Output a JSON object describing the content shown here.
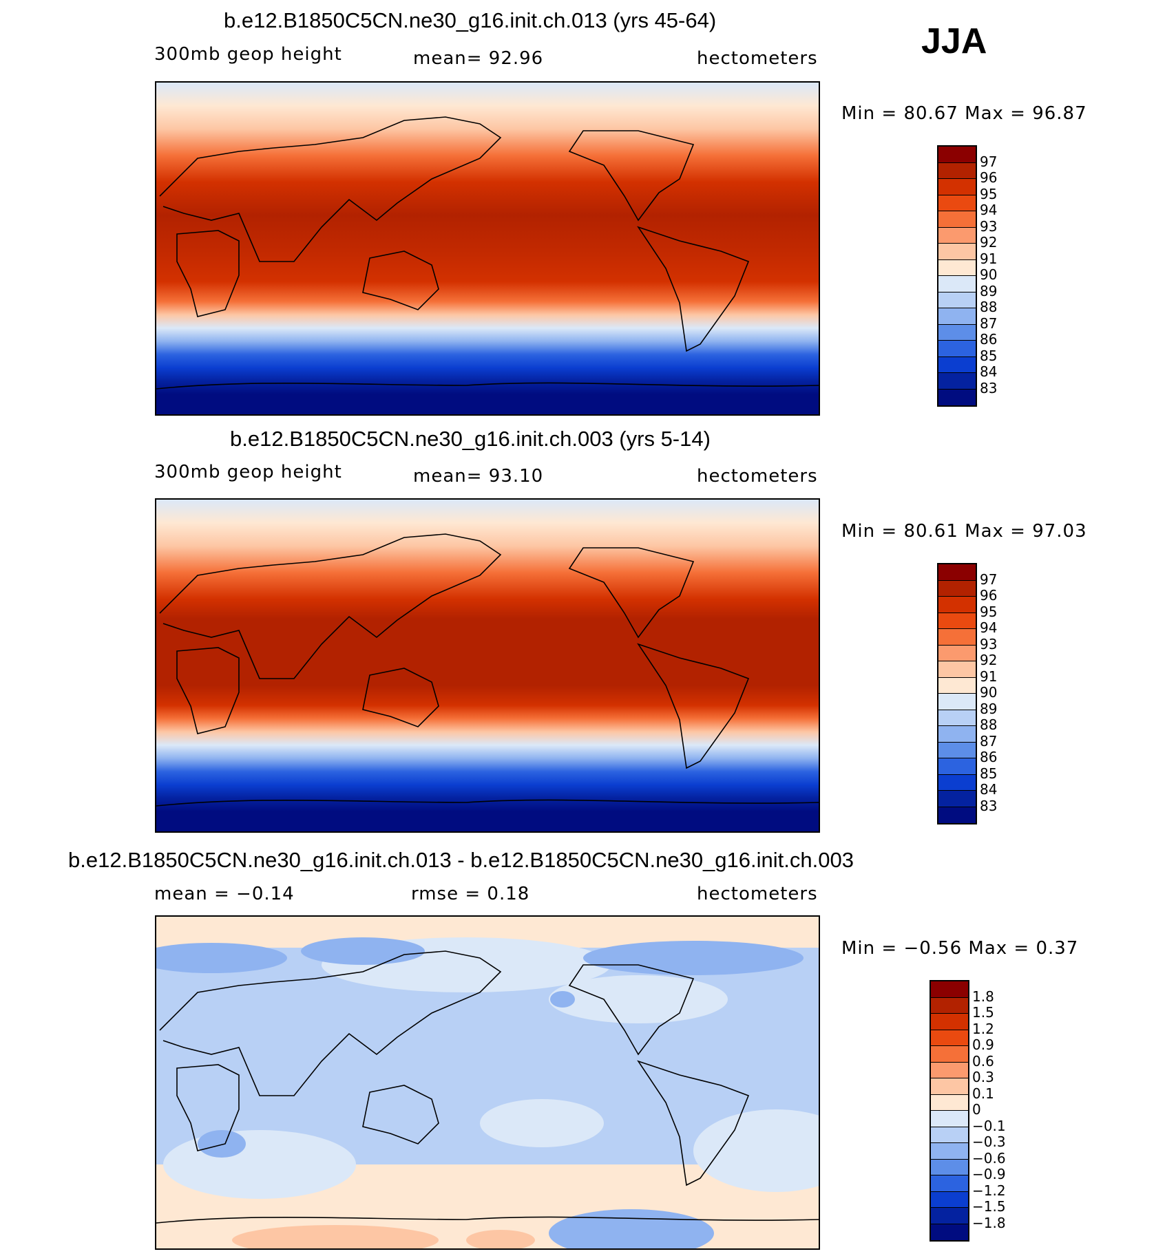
{
  "season": "JJA",
  "panels": [
    {
      "title": "b.e12.B1850C5CN.ne30_g16.init.ch.013 (yrs 45-64)",
      "left_label": "300mb  geop  height",
      "center_label": "mean=   92.96",
      "units": "hectometers",
      "minmax": "Min  =   80.67  Max  =   96.87",
      "colorbar_labels": [
        "97",
        "96",
        "95",
        "94",
        "93",
        "92",
        "91",
        "90",
        "89",
        "88",
        "87",
        "86",
        "85",
        "84",
        "83"
      ],
      "colorbar_colors": [
        "#8b0000",
        "#b22200",
        "#d33100",
        "#ea4a10",
        "#f57038",
        "#fb9a6e",
        "#fdc6a4",
        "#fee8d3",
        "#dbe8f8",
        "#b8d0f5",
        "#8fb3f0",
        "#5d8ee8",
        "#2c63e0",
        "#0b3ed0",
        "#0422a0",
        "#000c80"
      ]
    },
    {
      "title": "b.e12.B1850C5CN.ne30_g16.init.ch.003 (yrs 5-14)",
      "left_label": "300mb  geop  height",
      "center_label": "mean=   93.10",
      "units": "hectometers",
      "minmax": "Min  =   80.61  Max  =   97.03",
      "colorbar_labels": [
        "97",
        "96",
        "95",
        "94",
        "93",
        "92",
        "91",
        "90",
        "89",
        "88",
        "87",
        "86",
        "85",
        "84",
        "83"
      ],
      "colorbar_colors": [
        "#8b0000",
        "#b22200",
        "#d33100",
        "#ea4a10",
        "#f57038",
        "#fb9a6e",
        "#fdc6a4",
        "#fee8d3",
        "#dbe8f8",
        "#b8d0f5",
        "#8fb3f0",
        "#5d8ee8",
        "#2c63e0",
        "#0b3ed0",
        "#0422a0",
        "#000c80"
      ]
    },
    {
      "title": "b.e12.B1850C5CN.ne30_g16.init.ch.013 - b.e12.B1850C5CN.ne30_g16.init.ch.003",
      "left_label": "mean =   −0.14",
      "center_label": "rmse =    0.18",
      "units": "hectometers",
      "minmax": "Min  =   −0.56  Max  =     0.37",
      "colorbar_labels": [
        "1.8",
        "1.5",
        "1.2",
        "0.9",
        "0.6",
        "0.3",
        "0.1",
        "0",
        "−0.1",
        "−0.3",
        "−0.6",
        "−0.9",
        "−1.2",
        "−1.5",
        "−1.8"
      ],
      "colorbar_colors": [
        "#8b0000",
        "#b22200",
        "#d33100",
        "#ea4a10",
        "#f57038",
        "#fb9a6e",
        "#fdc6a4",
        "#fee8d3",
        "#dbe8f8",
        "#b8d0f5",
        "#8fb3f0",
        "#5d8ee8",
        "#2c63e0",
        "#0b3ed0",
        "#0422a0",
        "#000c80"
      ]
    }
  ]
}
